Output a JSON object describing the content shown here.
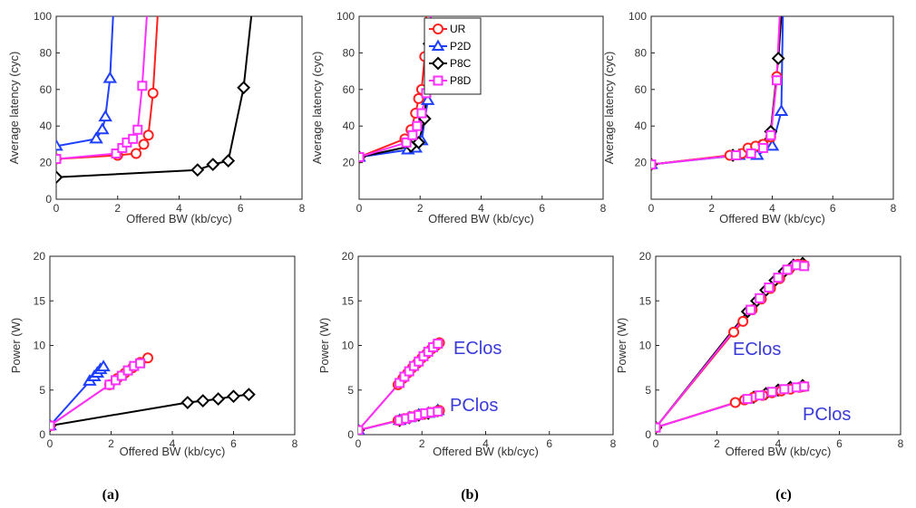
{
  "series_styles": {
    "UR": {
      "color": "#ff2020",
      "marker": "circle"
    },
    "P2D": {
      "color": "#1f3fff",
      "marker": "triangle"
    },
    "P8C": {
      "color": "#000000",
      "marker": "diamond"
    },
    "P8D": {
      "color": "#ff30ff",
      "marker": "square"
    }
  },
  "captions": [
    "(a)",
    "(b)",
    "(c)"
  ],
  "chart_data": [
    {
      "type": "line",
      "panel": "a-top",
      "xlabel": "Offered BW (kb/cyc)",
      "ylabel": "Average latency (cyc)",
      "xlim": [
        0,
        8
      ],
      "ylim": [
        0,
        100
      ],
      "xticks": [
        "0",
        "2",
        "4",
        "6",
        "8"
      ],
      "yticks": [
        "0",
        "20",
        "40",
        "60",
        "80",
        "100"
      ],
      "series": [
        {
          "name": "P8C",
          "x": [
            0,
            4.6,
            5.1,
            5.6,
            6.1,
            6.35
          ],
          "y": [
            12,
            16,
            19,
            21,
            61,
            100
          ]
        },
        {
          "name": "P2D",
          "x": [
            0,
            1.3,
            1.5,
            1.6,
            1.75,
            1.85
          ],
          "y": [
            29,
            33,
            38,
            45,
            66,
            100
          ]
        },
        {
          "name": "UR",
          "x": [
            0,
            2.0,
            2.6,
            2.85,
            3.0,
            3.15,
            3.3
          ],
          "y": [
            22,
            24,
            25,
            30,
            35,
            58,
            100
          ]
        },
        {
          "name": "P8D",
          "x": [
            0,
            1.95,
            2.15,
            2.3,
            2.5,
            2.65,
            2.8,
            2.95
          ],
          "y": [
            22,
            25,
            28,
            31,
            33,
            38,
            62,
            100
          ]
        }
      ]
    },
    {
      "type": "line",
      "panel": "b-top",
      "xlabel": "Offered BW (kb/cyc)",
      "ylabel": "Average latency (cyc)",
      "xlim": [
        0,
        8
      ],
      "ylim": [
        0,
        100
      ],
      "xticks": [
        "0",
        "2",
        "4",
        "6",
        "8"
      ],
      "yticks": [
        "20",
        "40",
        "60",
        "80",
        "100"
      ],
      "legend": {
        "entries": [
          "UR",
          "P2D",
          "P8C",
          "P8D"
        ],
        "placement": "top-center"
      },
      "series": [
        {
          "name": "P2D",
          "x": [
            0,
            1.6,
            1.85,
            2.05,
            2.25,
            2.35
          ],
          "y": [
            23,
            27,
            28,
            32,
            54,
            100
          ]
        },
        {
          "name": "P8C",
          "x": [
            0,
            1.7,
            1.95,
            2.15,
            2.3,
            2.35
          ],
          "y": [
            23,
            29,
            31,
            44,
            85,
            100
          ]
        },
        {
          "name": "UR",
          "x": [
            0,
            1.5,
            1.7,
            1.85,
            1.95,
            2.05,
            2.15,
            2.2
          ],
          "y": [
            23,
            33,
            38,
            47,
            55,
            60,
            78,
            100
          ]
        },
        {
          "name": "P8D",
          "x": [
            0,
            1.55,
            1.75,
            1.9,
            2.05,
            2.2,
            2.3,
            2.35
          ],
          "y": [
            23,
            31,
            35,
            40,
            47,
            58,
            80,
            100
          ]
        }
      ]
    },
    {
      "type": "line",
      "panel": "c-top",
      "xlabel": "Offered BW (kb/cyc)",
      "ylabel": "Average latency (cyc)",
      "xlim": [
        0,
        8
      ],
      "ylim": [
        0,
        100
      ],
      "xticks": [
        "0",
        "2",
        "4",
        "6",
        "8"
      ],
      "yticks": [
        "20",
        "40",
        "60",
        "80",
        "100"
      ],
      "series": [
        {
          "name": "P2D",
          "x": [
            0,
            2.9,
            3.5,
            4.0,
            4.3,
            4.35
          ],
          "y": [
            19,
            24,
            24,
            29,
            48,
            100
          ]
        },
        {
          "name": "P8C",
          "x": [
            0,
            2.7,
            3.2,
            3.6,
            3.95,
            4.2,
            4.3
          ],
          "y": [
            19,
            24,
            27,
            29,
            37,
            77,
            100
          ]
        },
        {
          "name": "UR",
          "x": [
            0,
            2.6,
            3.0,
            3.2,
            3.45,
            3.7,
            3.95,
            4.15,
            4.25
          ],
          "y": [
            19,
            24,
            25,
            28,
            29,
            30,
            34,
            67,
            100
          ]
        },
        {
          "name": "P8D",
          "x": [
            0,
            2.8,
            3.3,
            3.7,
            3.95,
            4.15,
            4.25
          ],
          "y": [
            19,
            24,
            25,
            28,
            35,
            65,
            100
          ]
        }
      ]
    },
    {
      "type": "line",
      "panel": "a-bottom",
      "xlabel": "Offered BW (kb/cyc)",
      "ylabel": "Power (W)",
      "xlim": [
        0,
        8
      ],
      "ylim": [
        0,
        20
      ],
      "xticks": [
        "0",
        "2",
        "4",
        "6",
        "8"
      ],
      "yticks": [
        "0",
        "5",
        "10",
        "15",
        "20"
      ],
      "series": [
        {
          "name": "P8C",
          "x": [
            0,
            4.5,
            5.0,
            5.5,
            6.0,
            6.5
          ],
          "y": [
            1.0,
            3.6,
            3.8,
            4.0,
            4.3,
            4.5
          ]
        },
        {
          "name": "P2D",
          "x": [
            0,
            1.3,
            1.45,
            1.55,
            1.65,
            1.75
          ],
          "y": [
            1.0,
            6.0,
            6.5,
            6.9,
            7.3,
            7.6
          ]
        },
        {
          "name": "UR",
          "x": [
            0,
            1.95,
            2.2,
            2.45,
            2.7,
            2.95,
            3.2
          ],
          "y": [
            1.0,
            5.6,
            6.3,
            6.9,
            7.5,
            8.1,
            8.6
          ]
        },
        {
          "name": "P8D",
          "x": [
            0,
            1.95,
            2.15,
            2.35,
            2.55,
            2.75,
            2.95
          ],
          "y": [
            1.0,
            5.6,
            6.1,
            6.6,
            7.2,
            7.7,
            8.0
          ]
        }
      ]
    },
    {
      "type": "line",
      "panel": "b-bottom",
      "xlabel": "Offered BW (kb/cyc)",
      "ylabel": "Power (W)",
      "xlim": [
        0,
        8
      ],
      "ylim": [
        0,
        20
      ],
      "xticks": [
        "0",
        "2",
        "4",
        "6",
        "8"
      ],
      "yticks": [
        "0",
        "5",
        "10",
        "15",
        "20"
      ],
      "annotations": [
        "EClos",
        "PClos"
      ],
      "series": [
        {
          "name": "UR",
          "x": [
            0,
            1.25,
            1.4,
            1.55,
            1.7,
            1.85,
            2.0,
            2.15,
            2.3,
            2.45,
            2.55
          ],
          "y": [
            0.5,
            5.6,
            6.3,
            6.9,
            7.5,
            8.0,
            8.6,
            9.1,
            9.6,
            10.0,
            10.3
          ]
        },
        {
          "name": "P8D",
          "x": [
            0,
            1.3,
            1.45,
            1.6,
            1.75,
            1.9,
            2.05,
            2.2,
            2.35,
            2.5
          ],
          "y": [
            0.5,
            5.8,
            6.5,
            7.1,
            7.7,
            8.2,
            8.8,
            9.3,
            9.8,
            10.2
          ]
        },
        {
          "name": "P8C",
          "x": [
            0,
            1.3,
            1.6,
            1.9,
            2.2,
            2.5
          ],
          "y": [
            0.5,
            1.6,
            1.9,
            2.2,
            2.4,
            2.7
          ]
        },
        {
          "name": "P2D",
          "x": [
            0,
            1.3,
            1.6,
            1.9,
            2.2,
            2.5
          ],
          "y": [
            0.5,
            1.6,
            1.9,
            2.2,
            2.4,
            2.7
          ]
        },
        {
          "name": "UR",
          "x": [
            0,
            1.25,
            1.45,
            1.65,
            1.85,
            2.05,
            2.25,
            2.45,
            2.55
          ],
          "y": [
            0.5,
            1.6,
            1.8,
            2.0,
            2.2,
            2.3,
            2.5,
            2.6,
            2.7
          ]
        },
        {
          "name": "P8D",
          "x": [
            0,
            1.3,
            1.5,
            1.7,
            1.9,
            2.1,
            2.3,
            2.5
          ],
          "y": [
            0.5,
            1.6,
            1.8,
            2.0,
            2.2,
            2.4,
            2.5,
            2.6
          ]
        }
      ]
    },
    {
      "type": "line",
      "panel": "c-bottom",
      "xlabel": "Offered BW (kb/cyc)",
      "ylabel": "Power (W)",
      "xlim": [
        0,
        8
      ],
      "ylim": [
        0,
        20
      ],
      "xticks": [
        "0",
        "2",
        "4",
        "6",
        "8"
      ],
      "yticks": [
        "0",
        "5",
        "10",
        "15",
        "20"
      ],
      "annotations": [
        "EClos",
        "PClos"
      ],
      "series": [
        {
          "name": "P8C",
          "x": [
            0,
            3.0,
            3.3,
            3.6,
            3.9,
            4.2,
            4.5,
            4.8
          ],
          "y": [
            0.8,
            13.8,
            15.0,
            16.2,
            17.3,
            18.3,
            19.0,
            19.2
          ]
        },
        {
          "name": "UR",
          "x": [
            0,
            2.55,
            2.85,
            3.15,
            3.45,
            3.75,
            4.05,
            4.35,
            4.65,
            4.85
          ],
          "y": [
            0.8,
            11.5,
            12.7,
            14.0,
            15.2,
            16.4,
            17.5,
            18.5,
            19.1,
            19.0
          ]
        },
        {
          "name": "P8D",
          "x": [
            0,
            3.1,
            3.4,
            3.7,
            4.0,
            4.3,
            4.6,
            4.85
          ],
          "y": [
            0.8,
            14.0,
            15.3,
            16.5,
            17.6,
            18.5,
            19.0,
            18.9
          ]
        },
        {
          "name": "P8C",
          "x": [
            0,
            3.2,
            3.6,
            4.0,
            4.4,
            4.8
          ],
          "y": [
            0.8,
            4.2,
            4.6,
            5.0,
            5.3,
            5.5
          ]
        },
        {
          "name": "UR",
          "x": [
            0,
            2.6,
            2.9,
            3.2,
            3.5,
            3.8,
            4.1,
            4.4,
            4.7,
            4.85
          ],
          "y": [
            0.8,
            3.6,
            3.9,
            4.2,
            4.4,
            4.7,
            4.9,
            5.1,
            5.3,
            5.4
          ]
        },
        {
          "name": "P8D",
          "x": [
            0,
            3.0,
            3.4,
            3.8,
            4.2,
            4.6,
            4.85
          ],
          "y": [
            0.8,
            4.0,
            4.4,
            4.8,
            5.1,
            5.3,
            5.4
          ]
        }
      ]
    }
  ]
}
